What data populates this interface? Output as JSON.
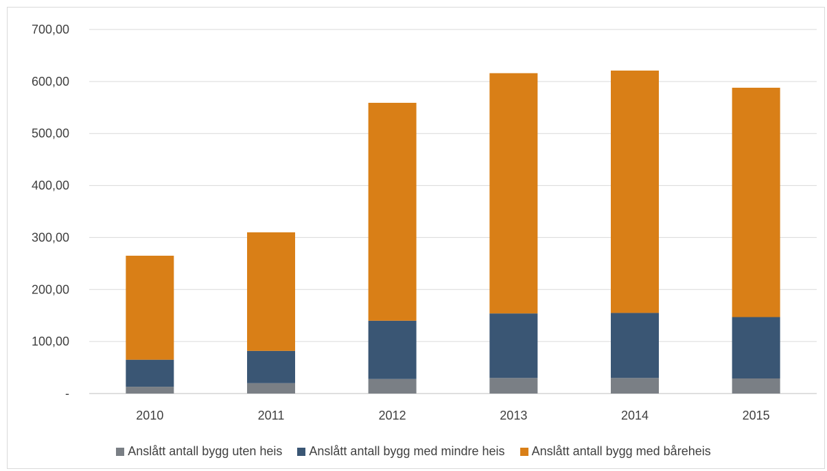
{
  "chart_data": {
    "type": "bar",
    "stacked": true,
    "categories": [
      "2010",
      "2011",
      "2012",
      "2013",
      "2014",
      "2015"
    ],
    "series": [
      {
        "name": "Anslått antall bygg uten heis",
        "color": "#7a7f85",
        "values": [
          13,
          20,
          28,
          30,
          30,
          29
        ]
      },
      {
        "name": "Anslått antall bygg med mindre heis",
        "color": "#3a5674",
        "values": [
          52,
          62,
          112,
          124,
          125,
          118
        ]
      },
      {
        "name": "Anslått antall bygg med båreheis",
        "color": "#d97f17",
        "values": [
          200,
          228,
          419,
          462,
          466,
          441
        ]
      }
    ],
    "y_ticks": [
      "-",
      "100,00",
      "200,00",
      "300,00",
      "400,00",
      "500,00",
      "600,00",
      "700,00"
    ],
    "ylim": [
      0,
      700
    ],
    "grid": true,
    "legend_position": "bottom"
  }
}
